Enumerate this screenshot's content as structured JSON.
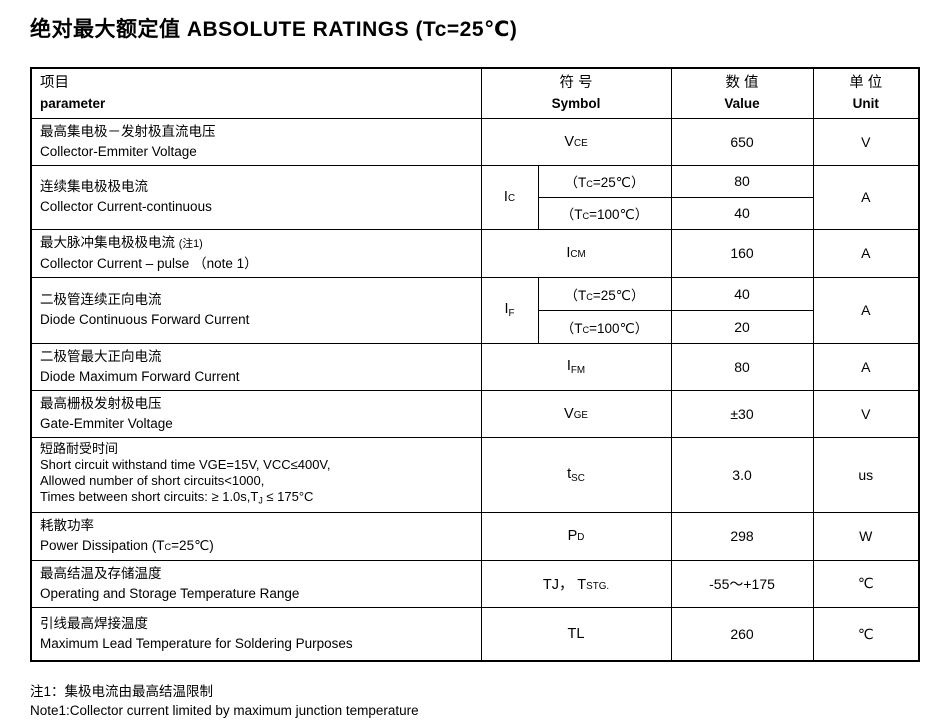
{
  "page": {
    "title": "绝对最大额定值 ABSOLUTE RATINGS (Tc=25℃)"
  },
  "header": {
    "parameter": {
      "zh": "项目",
      "en": "parameter"
    },
    "symbol": {
      "zh": "符 号",
      "en": "Symbol"
    },
    "value": {
      "zh": "数 值",
      "en": "Value"
    },
    "unit": {
      "zh": "单 位",
      "en": "Unit"
    }
  },
  "rows": [
    {
      "param_lines": [
        [
          {
            "t": "最高集电极－发射极直流电压"
          }
        ],
        [
          {
            "t": "Collector-Emmiter Voltage"
          }
        ]
      ],
      "symbol": [
        {
          "t": "V"
        },
        {
          "t": "CE",
          "s": true
        }
      ],
      "value": "650",
      "unit": "V"
    },
    {
      "param_lines": [
        [
          {
            "t": "连续集电极极电流"
          }
        ],
        [
          {
            "t": "Collector Current-continuous"
          }
        ]
      ],
      "symbol": [
        {
          "t": "I"
        },
        {
          "t": "C",
          "s": true
        }
      ],
      "sub": [
        {
          "cond": [
            {
              "t": "（T"
            },
            {
              "t": "C",
              "s": true
            },
            {
              "t": "=25℃）"
            }
          ],
          "value": "80"
        },
        {
          "cond": [
            {
              "t": "（T"
            },
            {
              "t": "C",
              "s": true
            },
            {
              "t": "=100℃）"
            }
          ],
          "value": "40"
        }
      ],
      "unit": "A"
    },
    {
      "param_lines": [
        [
          {
            "t": "最大脉冲集电极极电流 "
          },
          {
            "t": "(注1)",
            "sm": true
          }
        ],
        [
          {
            "t": "Collector Current – pulse （note 1）"
          }
        ]
      ],
      "symbol": [
        {
          "t": "I"
        },
        {
          "t": "CM",
          "s": true
        }
      ],
      "value": "160",
      "unit": "A"
    },
    {
      "param_lines": [
        [
          {
            "t": "二极管连续正向电流"
          }
        ],
        [
          {
            "t": "Diode Continuous Forward Current"
          }
        ]
      ],
      "symbol": [
        {
          "t": "I"
        },
        {
          "t": "F",
          "s": true,
          "d": true
        }
      ],
      "sub": [
        {
          "cond": [
            {
              "t": "（T"
            },
            {
              "t": "C",
              "s": true
            },
            {
              "t": "=25℃）"
            }
          ],
          "value": "40"
        },
        {
          "cond": [
            {
              "t": "（T"
            },
            {
              "t": "C",
              "s": true
            },
            {
              "t": "=100℃）"
            }
          ],
          "value": "20"
        }
      ],
      "unit": "A"
    },
    {
      "param_lines": [
        [
          {
            "t": "二极管最大正向电流"
          }
        ],
        [
          {
            "t": "Diode Maximum Forward Current"
          }
        ]
      ],
      "symbol": [
        {
          "t": "I"
        },
        {
          "t": "FM",
          "s": true,
          "d": true
        }
      ],
      "value": "80",
      "unit": "A"
    },
    {
      "param_lines": [
        [
          {
            "t": "最高栅极发射极电压"
          }
        ],
        [
          {
            "t": "Gate-Emmiter Voltage"
          }
        ]
      ],
      "symbol": [
        {
          "t": "V"
        },
        {
          "t": "GE",
          "s": true
        }
      ],
      "value": "±30",
      "unit": "V"
    },
    {
      "param_lines": [
        [
          {
            "t": "短路耐受时间"
          }
        ],
        [
          {
            "t": "Short circuit withstand time VGE=15V, VCC≤400V,"
          }
        ],
        [
          {
            "t": "Allowed number of short circuits<1000,"
          }
        ],
        [
          {
            "t": "Times between short circuits: ≥ 1.0s,T"
          },
          {
            "t": "J",
            "s": true,
            "d": true
          },
          {
            "t": " ≤ 175°C"
          }
        ]
      ],
      "symbol": [
        {
          "t": "t"
        },
        {
          "t": "SC",
          "s": true,
          "d": true
        }
      ],
      "value": "3.0",
      "unit": "us"
    },
    {
      "param_lines": [
        [
          {
            "t": "耗散功率"
          }
        ],
        [
          {
            "t": "Power Dissipation (T"
          },
          {
            "t": "C",
            "s": true
          },
          {
            "t": "=25℃)"
          }
        ]
      ],
      "symbol": [
        {
          "t": "P"
        },
        {
          "t": "D",
          "s": true
        }
      ],
      "value": "298",
      "unit": "W"
    },
    {
      "param_lines": [
        [
          {
            "t": "最高结温及存储温度"
          }
        ],
        [
          {
            "t": "Operating and Storage Temperature Range"
          }
        ]
      ],
      "symbol": [
        {
          "t": "TJ， T"
        },
        {
          "t": "STG.",
          "s": true
        }
      ],
      "value": "-55～+175",
      "unit": "℃"
    },
    {
      "param_lines": [
        [
          {
            "t": "引线最高焊接温度"
          }
        ],
        [
          {
            "t": "Maximum Lead Temperature for Soldering Purposes"
          }
        ]
      ],
      "symbol": [
        {
          "t": "TL"
        }
      ],
      "value": "260",
      "unit": "℃"
    }
  ],
  "notes": {
    "zh": "注1：集极电流由最高结温限制",
    "en": "Note1:Collector current limited by maximum junction temperature"
  }
}
